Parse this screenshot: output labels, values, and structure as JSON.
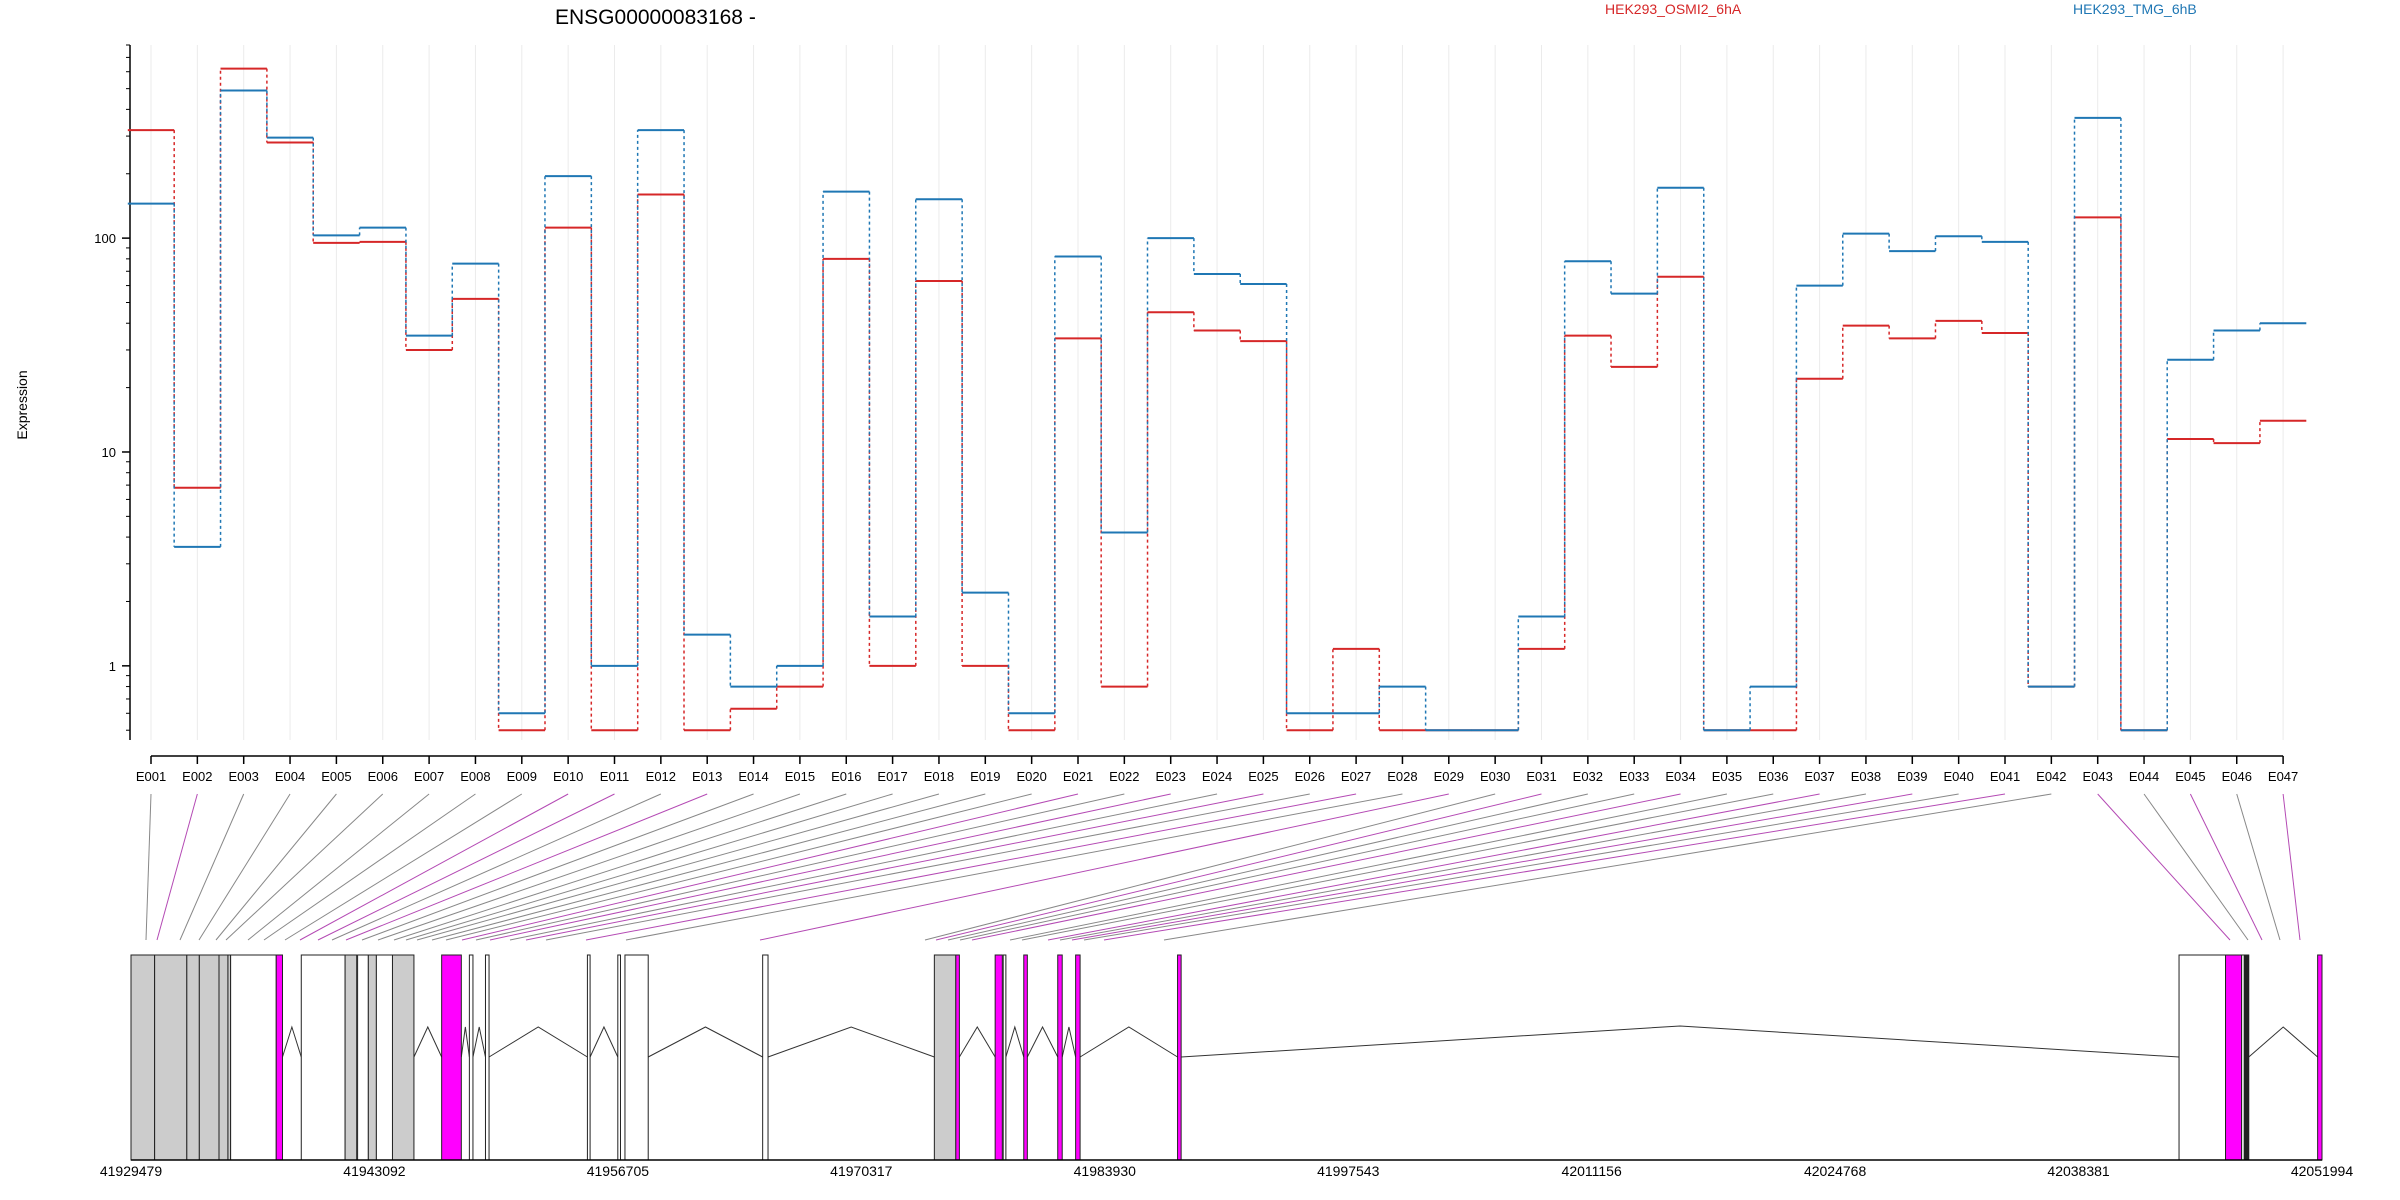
{
  "chart_data": {
    "type": "line",
    "title": "ENSG00000083168 -",
    "ylabel": "Expression",
    "yscale": "log",
    "ylim": [
      0.45,
      800
    ],
    "y_ticks": [
      1,
      10,
      100
    ],
    "y_tick_labels": [
      "1",
      "10",
      "100"
    ],
    "categories": [
      "E001",
      "E002",
      "E003",
      "E004",
      "E005",
      "E006",
      "E007",
      "E008",
      "E009",
      "E010",
      "E011",
      "E012",
      "E013",
      "E014",
      "E015",
      "E016",
      "E017",
      "E018",
      "E019",
      "E020",
      "E021",
      "E022",
      "E023",
      "E024",
      "E025",
      "E026",
      "E027",
      "E028",
      "E029",
      "E030",
      "E031",
      "E032",
      "E033",
      "E034",
      "E035",
      "E036",
      "E037",
      "E038",
      "E039",
      "E040",
      "E041",
      "E042",
      "E043",
      "E044",
      "E045",
      "E046",
      "E047"
    ],
    "series": [
      {
        "name": "HEK293_OSMI2_6hA",
        "color": "#d62728",
        "style": "dashed",
        "values": [
          320,
          6.8,
          620,
          280,
          95,
          96,
          30,
          52,
          0.5,
          112,
          0.5,
          160,
          0.5,
          0.63,
          0.8,
          80,
          1.0,
          63,
          1.0,
          0.5,
          34,
          0.8,
          45,
          37,
          33,
          0.5,
          1.2,
          0.5,
          0.5,
          0.5,
          1.2,
          35,
          25,
          66,
          0.5,
          0.5,
          22,
          39,
          34,
          41,
          36,
          0.8,
          125,
          0.5,
          11.5,
          11,
          14
        ]
      },
      {
        "name": "HEK293_TMG_6hB",
        "color": "#1f77b4",
        "style": "dashed",
        "values": [
          145,
          3.6,
          490,
          295,
          103,
          112,
          35,
          76,
          0.6,
          195,
          1.0,
          320,
          1.4,
          0.8,
          1.0,
          165,
          1.7,
          152,
          2.2,
          0.6,
          82,
          4.2,
          100,
          68,
          61,
          0.6,
          0.6,
          0.8,
          0.5,
          0.5,
          1.7,
          78,
          55,
          172,
          0.5,
          0.8,
          60,
          105,
          87,
          102,
          96,
          0.8,
          365,
          0.5,
          27,
          37,
          40
        ]
      }
    ],
    "gene_model": {
      "coordinate_labels": [
        "41929479",
        "41943092",
        "41956705",
        "41970317",
        "41983930",
        "41997543",
        "42011156",
        "42024768",
        "42038381",
        "42051994"
      ],
      "range": [
        41929479,
        42051994
      ],
      "exons": [
        {
          "start": 41929479,
          "end": 41930800,
          "fill": "#cccccc"
        },
        {
          "start": 41930800,
          "end": 41932600,
          "fill": "#cccccc"
        },
        {
          "start": 41932600,
          "end": 41933300,
          "fill": "#cccccc"
        },
        {
          "start": 41933300,
          "end": 41934400,
          "fill": "#cccccc"
        },
        {
          "start": 41934400,
          "end": 41934900,
          "fill": "#cccccc"
        },
        {
          "start": 41934900,
          "end": 41935050,
          "fill": "#cccccc"
        },
        {
          "start": 41935050,
          "end": 41937600,
          "fill": "#ffffff"
        },
        {
          "start": 41937600,
          "end": 41937950,
          "fill": "#ff00ff"
        },
        {
          "start": 41939000,
          "end": 41941450,
          "fill": "#ffffff"
        },
        {
          "start": 41941450,
          "end": 41942100,
          "fill": "#cccccc"
        },
        {
          "start": 41942150,
          "end": 41942750,
          "fill": "#ffffff"
        },
        {
          "start": 41942750,
          "end": 41943200,
          "fill": "#cccccc"
        },
        {
          "start": 41943200,
          "end": 41944100,
          "fill": "#ffffff"
        },
        {
          "start": 41944100,
          "end": 41945300,
          "fill": "#cccccc"
        },
        {
          "start": 41946850,
          "end": 41947950,
          "fill": "#ff00ff"
        },
        {
          "start": 41948400,
          "end": 41948600,
          "fill": "#ffffff"
        },
        {
          "start": 41949300,
          "end": 41949500,
          "fill": "#ffffff"
        },
        {
          "start": 41955000,
          "end": 41955150,
          "fill": "#ffffff"
        },
        {
          "start": 41956700,
          "end": 41956850,
          "fill": "#ffffff"
        },
        {
          "start": 41957100,
          "end": 41958400,
          "fill": "#ffffff"
        },
        {
          "start": 41964800,
          "end": 41965100,
          "fill": "#ffffff"
        },
        {
          "start": 41974400,
          "end": 41975600,
          "fill": "#cccccc"
        },
        {
          "start": 41975600,
          "end": 41975800,
          "fill": "#ff00ff"
        },
        {
          "start": 41977800,
          "end": 41978200,
          "fill": "#ff00ff"
        },
        {
          "start": 41978250,
          "end": 41978400,
          "fill": "#ffffff"
        },
        {
          "start": 41979400,
          "end": 41979600,
          "fill": "#ff00ff"
        },
        {
          "start": 41981300,
          "end": 41981550,
          "fill": "#ff00ff"
        },
        {
          "start": 41982300,
          "end": 41982550,
          "fill": "#ff00ff"
        },
        {
          "start": 41988000,
          "end": 41988200,
          "fill": "#ff00ff"
        },
        {
          "start": 42044000,
          "end": 42046600,
          "fill": "#ffffff"
        },
        {
          "start": 42046600,
          "end": 42047500,
          "fill": "#ff00ff"
        },
        {
          "start": 42047500,
          "end": 42047650,
          "fill": "#ffffff"
        },
        {
          "start": 42047650,
          "end": 42047900,
          "fill": "#222222"
        },
        {
          "start": 42051750,
          "end": 42051994,
          "fill": "#ff00ff"
        }
      ]
    }
  }
}
